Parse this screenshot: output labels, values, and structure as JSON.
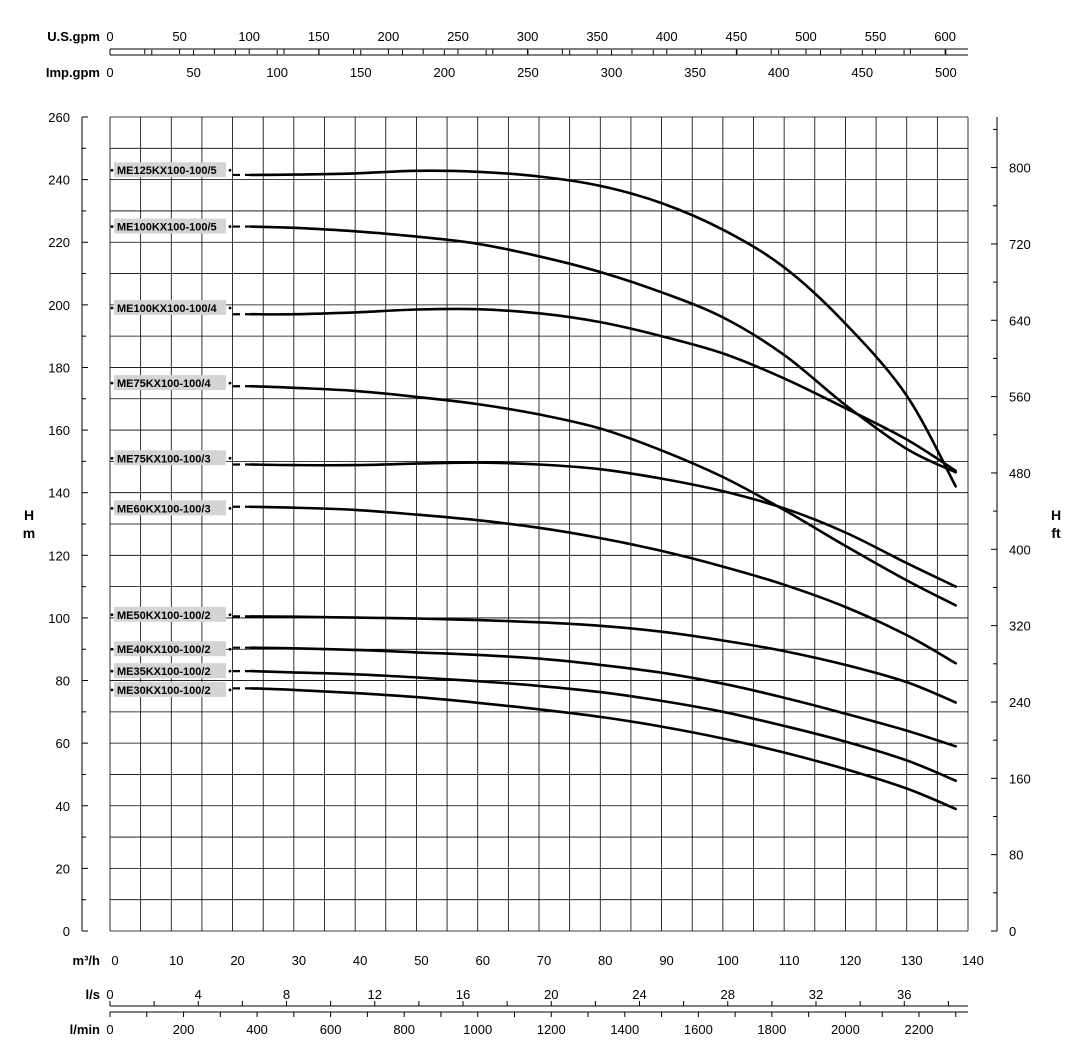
{
  "axes": {
    "us_gpm": {
      "unit": "U.S.gpm",
      "ticks": [
        0,
        50,
        100,
        150,
        200,
        250,
        300,
        350,
        400,
        450,
        500,
        550,
        600
      ]
    },
    "imp_gpm": {
      "unit": "Imp.gpm",
      "ticks": [
        0,
        50,
        100,
        150,
        200,
        250,
        300,
        350,
        400,
        450,
        500
      ]
    },
    "flow_m3h": {
      "unit": "m³/h",
      "ticks": [
        0,
        10,
        20,
        30,
        40,
        50,
        60,
        70,
        80,
        90,
        100,
        110,
        120,
        130,
        140
      ]
    },
    "flow_ls": {
      "unit": "l/s",
      "ticks": [
        0,
        4,
        8,
        12,
        16,
        20,
        24,
        28,
        32,
        36
      ]
    },
    "flow_lmin": {
      "unit": "l/min",
      "ticks": [
        0,
        200,
        400,
        600,
        800,
        1000,
        1200,
        1400,
        1600,
        1800,
        2000,
        2200
      ]
    },
    "head_m": {
      "name_top": "H",
      "name_bottom": "m",
      "ticks": [
        0,
        20,
        40,
        60,
        80,
        100,
        120,
        140,
        160,
        180,
        200,
        220,
        240,
        260
      ]
    },
    "head_ft": {
      "name_top": "H",
      "name_bottom": "ft",
      "ticks": [
        0,
        80,
        160,
        240,
        320,
        400,
        480,
        560,
        640,
        720,
        800
      ]
    }
  },
  "chart_data": {
    "type": "line",
    "title": "",
    "xlabel": "m³/h",
    "ylabel": "H m",
    "xlim": [
      0,
      140
    ],
    "ylim": [
      0,
      260
    ],
    "grid": true,
    "series": [
      {
        "name": "ME125KX100-100/5",
        "label_y": 243,
        "x": [
          23,
          30,
          40,
          50,
          60,
          70,
          80,
          90,
          100,
          110,
          120,
          130,
          138
        ],
        "y": [
          241.5,
          241.6,
          242,
          242.8,
          242.5,
          241,
          238,
          232.5,
          224,
          212,
          194,
          171,
          142
        ]
      },
      {
        "name": "ME100KX100-100/5",
        "label_y": 225,
        "x": [
          23,
          30,
          40,
          50,
          60,
          70,
          80,
          90,
          100,
          110,
          120,
          130,
          138
        ],
        "y": [
          225,
          224.6,
          223.5,
          221.8,
          219.5,
          215.5,
          210.5,
          204,
          196,
          184,
          168,
          154,
          146.5
        ]
      },
      {
        "name": "ME100KX100-100/4",
        "label_y": 199,
        "x": [
          23,
          30,
          40,
          50,
          60,
          70,
          80,
          90,
          100,
          110,
          120,
          130,
          138
        ],
        "y": [
          197,
          197,
          197.6,
          198.5,
          198.6,
          197.3,
          194.5,
          190,
          184.5,
          176.5,
          167,
          157,
          147
        ]
      },
      {
        "name": "ME75KX100-100/4",
        "label_y": 175,
        "x": [
          23,
          30,
          40,
          50,
          60,
          70,
          80,
          90,
          100,
          110,
          120,
          130,
          138
        ],
        "y": [
          174,
          173.5,
          172.5,
          170.6,
          168.3,
          165,
          160.5,
          153.5,
          145,
          134.5,
          123,
          112,
          104
        ]
      },
      {
        "name": "ME75KX100-100/3",
        "label_y": 151,
        "x": [
          23,
          30,
          40,
          50,
          60,
          70,
          80,
          90,
          100,
          110,
          120,
          130,
          138
        ],
        "y": [
          149,
          148.8,
          148.8,
          149.3,
          149.6,
          149,
          147.5,
          144.5,
          140.5,
          135,
          127.3,
          117.5,
          110
        ]
      },
      {
        "name": "ME60KX100-100/3",
        "label_y": 135,
        "x": [
          23,
          30,
          40,
          50,
          60,
          70,
          80,
          90,
          100,
          110,
          120,
          130,
          138
        ],
        "y": [
          135.5,
          135.2,
          134.5,
          133,
          131.2,
          128.8,
          125.5,
          121.4,
          116.4,
          110.6,
          103.5,
          94.5,
          85.5
        ]
      },
      {
        "name": "ME50KX100-100/2",
        "label_y": 101,
        "x": [
          23,
          30,
          40,
          50,
          60,
          70,
          80,
          90,
          100,
          110,
          120,
          130,
          138
        ],
        "y": [
          100.5,
          100.4,
          100.1,
          99.8,
          99.3,
          98.6,
          97.5,
          95.6,
          92.8,
          89.4,
          85,
          79.5,
          73
        ]
      },
      {
        "name": "ME40KX100-100/2",
        "label_y": 90,
        "x": [
          23,
          30,
          40,
          50,
          60,
          70,
          80,
          90,
          100,
          110,
          120,
          130,
          138
        ],
        "y": [
          90.5,
          90.3,
          89.8,
          89,
          88.2,
          87,
          85,
          82.5,
          79,
          74.5,
          69.4,
          64,
          59
        ]
      },
      {
        "name": "ME35KX100-100/2",
        "label_y": 83,
        "x": [
          23,
          30,
          40,
          50,
          60,
          70,
          80,
          90,
          100,
          110,
          120,
          130,
          138
        ],
        "y": [
          83,
          82.6,
          82,
          81,
          79.8,
          78.3,
          76.3,
          73.5,
          70,
          65.5,
          60.5,
          54.5,
          48
        ]
      },
      {
        "name": "ME30KX100-100/2",
        "label_y": 77,
        "x": [
          23,
          30,
          40,
          50,
          60,
          70,
          80,
          90,
          100,
          110,
          120,
          130,
          138
        ],
        "y": [
          77.5,
          77,
          76,
          74.7,
          72.9,
          70.8,
          68.4,
          65.3,
          61.5,
          57,
          51.7,
          45.5,
          39
        ]
      }
    ]
  }
}
